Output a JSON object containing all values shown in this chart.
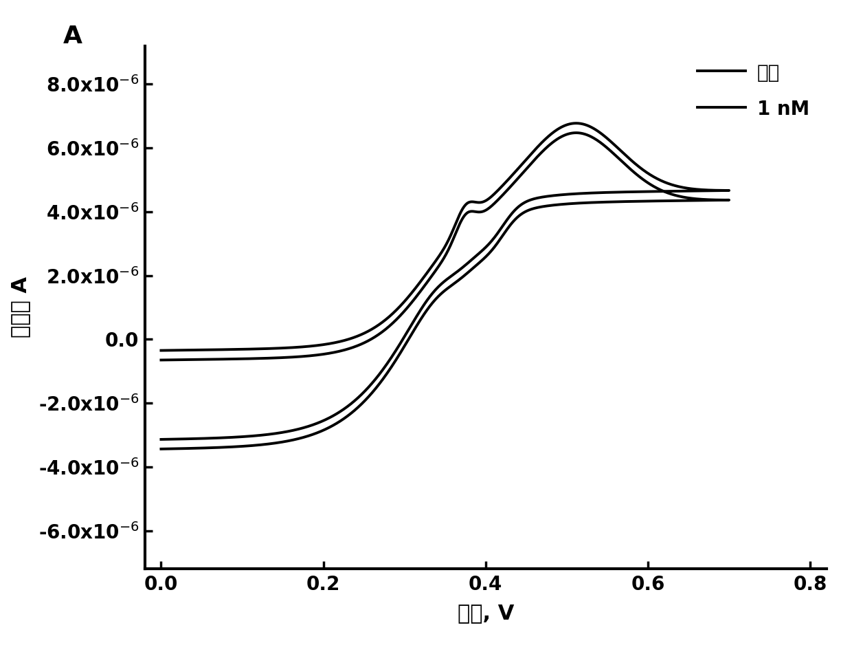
{
  "title_label": "A",
  "xlabel": "电位, V",
  "ylabel": "电流， A",
  "xlim": [
    -0.02,
    0.82
  ],
  "ylim": [
    -7.2e-06,
    9.2e-06
  ],
  "xticks": [
    0.0,
    0.2,
    0.4,
    0.6,
    0.8
  ],
  "yticks": [
    -6e-06,
    -4e-06,
    -2e-06,
    0.0,
    2e-06,
    4e-06,
    6e-06,
    8e-06
  ],
  "line_color": "#000000",
  "line_width": 2.8,
  "legend_labels": [
    "空白",
    "1 nM"
  ],
  "background_color": "#ffffff",
  "font_size_ticks": 20,
  "font_size_labels": 22,
  "font_size_title": 26,
  "font_size_legend": 20
}
